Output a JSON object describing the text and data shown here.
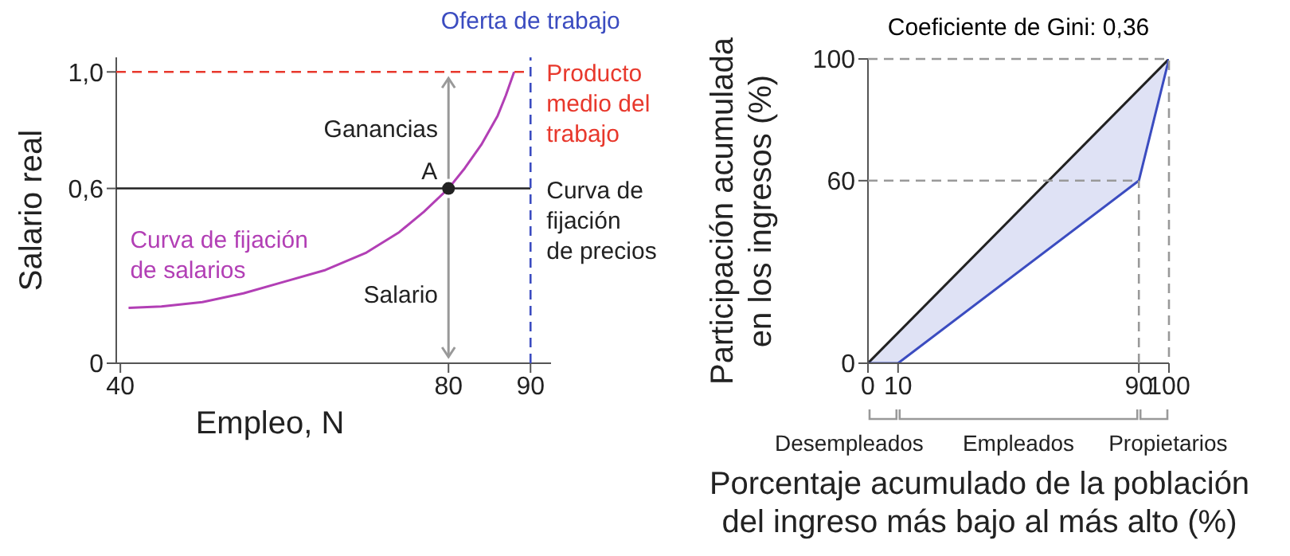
{
  "chart_data": [
    {
      "type": "line",
      "xlabel": "Empleo, N",
      "ylabel": "Salario real",
      "xlim": [
        39.5,
        92.5
      ],
      "ylim": [
        0,
        1.05
      ],
      "xticks": [
        40,
        80,
        90
      ],
      "yticks": [
        0,
        {
          "value": 0.6,
          "label": "0,6"
        },
        {
          "value": 1,
          "label": "1,0"
        }
      ],
      "series": [
        {
          "name": "Curva de fijación de salarios",
          "color": "#b23fb5",
          "x": [
            41,
            45,
            50,
            55,
            60,
            65,
            70,
            74,
            77,
            80,
            82,
            84,
            86,
            87,
            88
          ],
          "values": [
            0.19,
            0.195,
            0.21,
            0.24,
            0.28,
            0.32,
            0.38,
            0.45,
            0.52,
            0.6,
            0.67,
            0.75,
            0.85,
            0.92,
            1.0
          ]
        },
        {
          "type": "scatter",
          "color": "#222222",
          "marker": "circle",
          "x": [
            80
          ],
          "values": [
            0.6
          ]
        }
      ],
      "ref_lines": [
        {
          "axis": "y",
          "value": 0.6,
          "label": "Curva de fijación de precios",
          "color": "#222222",
          "line_style": "solid"
        },
        {
          "axis": "y",
          "value": 1,
          "label": "Producto medio del trabajo",
          "color": "#e8382c",
          "line_style": "dashed"
        },
        {
          "axis": "x",
          "value": 90,
          "label": "Oferta de trabajo",
          "color": "#3b4cc0",
          "line_style": "dashed"
        }
      ],
      "annotations": [
        {
          "text": "A",
          "x": 80,
          "y": 0.6
        },
        "Ganancias",
        "Salario"
      ]
    },
    {
      "type": "line",
      "title": "Coeficiente de Gini: 0,36",
      "xlabel": "Porcentaje acumulado de la población del ingreso más bajo al más alto (%)",
      "ylabel": "Participación acumulada en los ingresos (%)",
      "xlim": [
        0,
        100
      ],
      "ylim": [
        0,
        100
      ],
      "xticks": [
        0,
        10,
        90,
        100
      ],
      "yticks": [
        0,
        60,
        100
      ],
      "series": [
        {
          "color": "#222222",
          "x": [
            0,
            100
          ],
          "values": [
            0,
            100
          ]
        },
        {
          "color": "#3b4cc0",
          "x": [
            0,
            10,
            90,
            100
          ],
          "values": [
            0,
            0,
            60,
            100
          ],
          "lower": [
            0,
            0,
            60,
            100
          ],
          "upper": [
            0,
            10,
            90,
            100
          ]
        }
      ],
      "ref_lines": [
        {
          "axis": "y",
          "value": 60,
          "color": "#999999",
          "line_style": "dashed"
        },
        {
          "axis": "x",
          "value": 90,
          "color": "#999999",
          "line_style": "dashed"
        }
      ],
      "annotations": [
        "Desempleados",
        "Empleados",
        "Propietarios"
      ]
    }
  ]
}
